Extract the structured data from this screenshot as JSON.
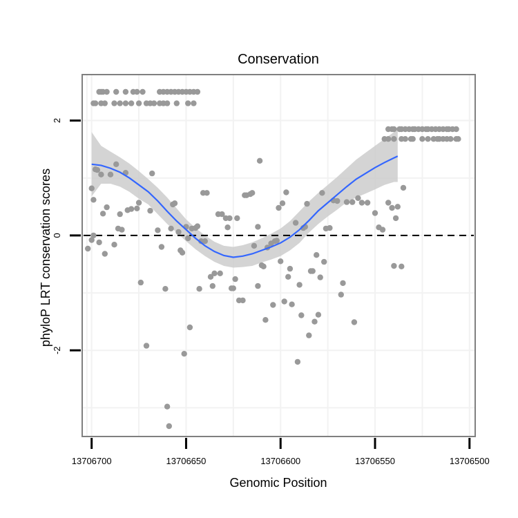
{
  "chart_data": {
    "type": "scatter",
    "title": "Conservation",
    "xlabel": "Genomic Position",
    "ylabel": "phyloP LRT conservation scores",
    "xlim": [
      13706705,
      13706497
    ],
    "ylim": [
      -3.5,
      2.8
    ],
    "x_reversed": true,
    "x_ticks": [
      13706700,
      13706650,
      13706600,
      13706550,
      13706500
    ],
    "y_ticks": [
      -2,
      0,
      2
    ],
    "grid": true,
    "legend": "none",
    "reference_line": {
      "y": 0,
      "style": "dashed"
    },
    "colors": {
      "points": "#999999",
      "smooth_line": "#3366ff",
      "confidence_band": "#cccccc",
      "grid": "#f2f2f2",
      "panel_border": "#7f7f7f"
    },
    "points": [
      [
        13706696,
        2.5
      ],
      [
        13706695,
        2.5
      ],
      [
        13706694,
        2.5
      ],
      [
        13706692,
        2.5
      ],
      [
        13706687,
        2.5
      ],
      [
        13706682,
        2.5
      ],
      [
        13706678,
        2.5
      ],
      [
        13706676,
        2.5
      ],
      [
        13706673,
        2.5
      ],
      [
        13706664,
        2.5
      ],
      [
        13706662,
        2.5
      ],
      [
        13706660,
        2.5
      ],
      [
        13706658,
        2.5
      ],
      [
        13706656,
        2.5
      ],
      [
        13706654,
        2.5
      ],
      [
        13706652,
        2.5
      ],
      [
        13706650,
        2.5
      ],
      [
        13706648,
        2.5
      ],
      [
        13706646,
        2.5
      ],
      [
        13706644,
        2.5
      ],
      [
        13706699,
        2.3
      ],
      [
        13706698,
        2.3
      ],
      [
        13706695,
        2.3
      ],
      [
        13706693,
        2.3
      ],
      [
        13706688,
        2.3
      ],
      [
        13706685,
        2.3
      ],
      [
        13706682,
        2.3
      ],
      [
        13706679,
        2.3
      ],
      [
        13706675,
        2.3
      ],
      [
        13706671,
        2.3
      ],
      [
        13706669,
        2.3
      ],
      [
        13706667,
        2.3
      ],
      [
        13706664,
        2.3
      ],
      [
        13706662,
        2.3
      ],
      [
        13706660,
        2.3
      ],
      [
        13706655,
        2.3
      ],
      [
        13706649,
        2.3
      ],
      [
        13706646,
        2.3
      ],
      [
        13706543,
        1.85
      ],
      [
        13706541,
        1.85
      ],
      [
        13706540,
        1.85
      ],
      [
        13706537,
        1.85
      ],
      [
        13706536,
        1.85
      ],
      [
        13706534,
        1.85
      ],
      [
        13706532,
        1.85
      ],
      [
        13706530,
        1.85
      ],
      [
        13706529,
        1.85
      ],
      [
        13706527,
        1.85
      ],
      [
        13706525,
        1.85
      ],
      [
        13706523,
        1.85
      ],
      [
        13706522,
        1.85
      ],
      [
        13706520,
        1.85
      ],
      [
        13706518,
        1.85
      ],
      [
        13706516,
        1.85
      ],
      [
        13706514,
        1.85
      ],
      [
        13706512,
        1.85
      ],
      [
        13706511,
        1.85
      ],
      [
        13706509,
        1.85
      ],
      [
        13706507,
        1.85
      ],
      [
        13706545,
        1.68
      ],
      [
        13706543,
        1.68
      ],
      [
        13706540,
        1.68
      ],
      [
        13706536,
        1.68
      ],
      [
        13706534,
        1.68
      ],
      [
        13706531,
        1.68
      ],
      [
        13706530,
        1.68
      ],
      [
        13706525,
        1.68
      ],
      [
        13706522,
        1.68
      ],
      [
        13706519,
        1.68
      ],
      [
        13706517,
        1.68
      ],
      [
        13706516,
        1.68
      ],
      [
        13706514,
        1.68
      ],
      [
        13706512,
        1.68
      ],
      [
        13706510,
        1.68
      ],
      [
        13706507,
        1.68
      ],
      [
        13706506,
        1.68
      ],
      [
        13706700,
        0.82
      ],
      [
        13706699,
        0.62
      ],
      [
        13706698,
        1.15
      ],
      [
        13706697,
        1.14
      ],
      [
        13706695,
        1.06
      ],
      [
        13706694,
        0.38
      ],
      [
        13706693,
        -0.32
      ],
      [
        13706692,
        0.49
      ],
      [
        13706690,
        1.06
      ],
      [
        13706688,
        -0.16
      ],
      [
        13706687,
        1.24
      ],
      [
        13706686,
        0.12
      ],
      [
        13706685,
        0.37
      ],
      [
        13706684,
        0.1
      ],
      [
        13706682,
        1.09
      ],
      [
        13706681,
        0.44
      ],
      [
        13706679,
        0.46
      ],
      [
        13706676,
        0.47
      ],
      [
        13706675,
        0.57
      ],
      [
        13706674,
        -0.82
      ],
      [
        13706671,
        -1.92
      ],
      [
        13706669,
        0.43
      ],
      [
        13706668,
        1.08
      ],
      [
        13706665,
        0.09
      ],
      [
        13706663,
        -0.2
      ],
      [
        13706661,
        -0.93
      ],
      [
        13706660,
        -2.98
      ],
      [
        13706659,
        -3.32
      ],
      [
        13706658,
        0.12
      ],
      [
        13706657,
        0.54
      ],
      [
        13706656,
        0.56
      ],
      [
        13706654,
        0.06
      ],
      [
        13706653,
        -0.26
      ],
      [
        13706652,
        -0.3
      ],
      [
        13706651,
        -2.06
      ],
      [
        13706650,
        0.15
      ],
      [
        13706649,
        -0.05
      ],
      [
        13706648,
        -1.6
      ],
      [
        13706647,
        0.12
      ],
      [
        13706645,
        0.13
      ],
      [
        13706644,
        0.16
      ],
      [
        13706643,
        -0.93
      ],
      [
        13706642,
        -0.1
      ],
      [
        13706641,
        0.74
      ],
      [
        13706640,
        -0.1
      ],
      [
        13706639,
        0.74
      ],
      [
        13706637,
        -0.72
      ],
      [
        13706636,
        -0.88
      ],
      [
        13706635,
        -0.66
      ],
      [
        13706633,
        0.37
      ],
      [
        13706632,
        -0.66
      ],
      [
        13706631,
        0.37
      ],
      [
        13706629,
        0.3
      ],
      [
        13706628,
        0.14
      ],
      [
        13706627,
        0.3
      ],
      [
        13706626,
        -0.92
      ],
      [
        13706625,
        -0.92
      ],
      [
        13706624,
        -0.76
      ],
      [
        13706623,
        0.3
      ],
      [
        13706622,
        -1.13
      ],
      [
        13706620,
        -1.13
      ],
      [
        13706619,
        0.7
      ],
      [
        13706618,
        0.7
      ],
      [
        13706616,
        0.72
      ],
      [
        13706615,
        0.74
      ],
      [
        13706614,
        -0.18
      ],
      [
        13706612,
        0.15
      ],
      [
        13706612,
        -0.88
      ],
      [
        13706611,
        1.3
      ],
      [
        13706610,
        -0.52
      ],
      [
        13706609,
        -0.54
      ],
      [
        13706608,
        -1.47
      ],
      [
        13706607,
        -0.21
      ],
      [
        13706605,
        -0.14
      ],
      [
        13706604,
        -1.21
      ],
      [
        13706603,
        -0.1
      ],
      [
        13706602,
        -0.09
      ],
      [
        13706601,
        0.48
      ],
      [
        13706600,
        -0.45
      ],
      [
        13706599,
        0.56
      ],
      [
        13706598,
        -1.15
      ],
      [
        13706597,
        0.75
      ],
      [
        13706596,
        -0.72
      ],
      [
        13706595,
        -0.58
      ],
      [
        13706594,
        -1.2
      ],
      [
        13706592,
        0.22
      ],
      [
        13706591,
        -2.2
      ],
      [
        13706590,
        -0.86
      ],
      [
        13706589,
        -1.39
      ],
      [
        13706588,
        0.13
      ],
      [
        13706587,
        0.15
      ],
      [
        13706586,
        0.55
      ],
      [
        13706585,
        -1.74
      ],
      [
        13706584,
        -0.62
      ],
      [
        13706583,
        -0.62
      ],
      [
        13706582,
        -1.5
      ],
      [
        13706581,
        -0.34
      ],
      [
        13706580,
        -1.38
      ],
      [
        13706579,
        -0.73
      ],
      [
        13706578,
        0.74
      ],
      [
        13706577,
        -0.46
      ],
      [
        13706576,
        0.12
      ],
      [
        13706574,
        0.13
      ],
      [
        13706572,
        0.61
      ],
      [
        13706570,
        0.6
      ],
      [
        13706568,
        -1.03
      ],
      [
        13706567,
        -0.83
      ],
      [
        13706565,
        0.58
      ],
      [
        13706562,
        0.58
      ],
      [
        13706561,
        -1.51
      ],
      [
        13706559,
        0.65
      ],
      [
        13706557,
        0.57
      ],
      [
        13706554,
        0.57
      ],
      [
        13706550,
        0.39
      ],
      [
        13706548,
        0.14
      ],
      [
        13706546,
        0.1
      ],
      [
        13706543,
        0.57
      ],
      [
        13706541,
        0.48
      ],
      [
        13706540,
        -0.53
      ],
      [
        13706539,
        0.3
      ],
      [
        13706538,
        0.5
      ],
      [
        13706536,
        -0.54
      ],
      [
        13706535,
        0.83
      ],
      [
        13706702,
        -0.23
      ],
      [
        13706700,
        -0.08
      ],
      [
        13706699,
        0.0
      ],
      [
        13706696,
        -0.12
      ]
    ],
    "smooth": [
      [
        13706700,
        1.24
      ],
      [
        13706695,
        1.22
      ],
      [
        13706690,
        1.17
      ],
      [
        13706685,
        1.1
      ],
      [
        13706680,
        1.0
      ],
      [
        13706675,
        0.88
      ],
      [
        13706670,
        0.76
      ],
      [
        13706665,
        0.6
      ],
      [
        13706660,
        0.42
      ],
      [
        13706655,
        0.25
      ],
      [
        13706650,
        0.1
      ],
      [
        13706645,
        -0.05
      ],
      [
        13706640,
        -0.18
      ],
      [
        13706635,
        -0.28
      ],
      [
        13706630,
        -0.35
      ],
      [
        13706625,
        -0.38
      ],
      [
        13706620,
        -0.36
      ],
      [
        13706615,
        -0.32
      ],
      [
        13706610,
        -0.26
      ],
      [
        13706605,
        -0.2
      ],
      [
        13706600,
        -0.13
      ],
      [
        13706595,
        -0.03
      ],
      [
        13706590,
        0.1
      ],
      [
        13706585,
        0.26
      ],
      [
        13706580,
        0.43
      ],
      [
        13706575,
        0.57
      ],
      [
        13706570,
        0.71
      ],
      [
        13706565,
        0.85
      ],
      [
        13706560,
        0.98
      ],
      [
        13706555,
        1.08
      ],
      [
        13706550,
        1.18
      ],
      [
        13706545,
        1.27
      ],
      [
        13706540,
        1.35
      ],
      [
        13706538,
        1.38
      ]
    ],
    "band_upper": [
      1.8,
      1.56,
      1.46,
      1.36,
      1.25,
      1.12,
      0.98,
      0.83,
      0.66,
      0.47,
      0.28,
      0.13,
      0.0,
      -0.11,
      -0.18,
      -0.2,
      -0.17,
      -0.12,
      -0.05,
      0.03,
      0.12,
      0.25,
      0.42,
      0.59,
      0.74,
      0.88,
      1.02,
      1.17,
      1.32,
      1.44,
      1.56,
      1.68,
      1.8,
      1.9
    ],
    "band_lower": [
      0.68,
      0.9,
      0.9,
      0.85,
      0.76,
      0.64,
      0.54,
      0.37,
      0.2,
      0.05,
      -0.1,
      -0.24,
      -0.36,
      -0.46,
      -0.53,
      -0.56,
      -0.55,
      -0.53,
      -0.47,
      -0.42,
      -0.36,
      -0.26,
      -0.13,
      0.05,
      0.2,
      0.33,
      0.45,
      0.58,
      0.66,
      0.73,
      0.8,
      0.88,
      0.93,
      0.93
    ]
  }
}
